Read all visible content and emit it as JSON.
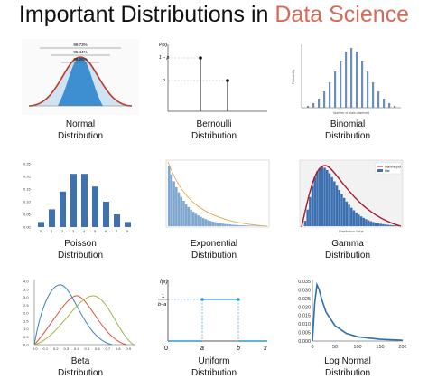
{
  "title": {
    "prefix": "Important Distributions in ",
    "highlight": "Data Science"
  },
  "colors": {
    "highlight": "#d26b58",
    "bar_blue": "#4a78ad",
    "curve_red": "#c03a2b",
    "uniform_blue": "#2e9ad0"
  },
  "distributions": [
    {
      "name_line1": "Normal",
      "name_line2": "Distribution",
      "labels": {
        "pct1": "99.73%",
        "pct2": "95.44%",
        "pct3": "68.26%"
      }
    },
    {
      "name_line1": "Bernoulli",
      "name_line2": "Distribution",
      "labels": {
        "y_top": "P(x)",
        "y_1mp": "1 − p",
        "y_p": "p"
      }
    },
    {
      "name_line1": "Binomial",
      "name_line2": "Distribution",
      "labels": {
        "xlabel": "Number of trials observed",
        "ylabel": "Probability"
      }
    },
    {
      "name_line1": "Poisson",
      "name_line2": "Distribution",
      "chart_data": {
        "type": "bar",
        "categories": [
          "0",
          "1",
          "2",
          "3",
          "4",
          "5",
          "6",
          "7",
          "8"
        ],
        "values": [
          0.02,
          0.07,
          0.14,
          0.21,
          0.21,
          0.16,
          0.1,
          0.05,
          0.02
        ],
        "y_ticks": [
          "0.25",
          "0.20",
          "0.15",
          "0.10",
          "0.05",
          "0.00"
        ]
      }
    },
    {
      "name_line1": "Exponential",
      "name_line2": "Distribution"
    },
    {
      "name_line1": "Gamma",
      "name_line2": "Distribution",
      "labels": {
        "legend1": "Gamma pdf",
        "legend2": "hist",
        "xlabel": "Distribution Value"
      }
    },
    {
      "name_line1": "Beta",
      "name_line2": "Distribution",
      "y_ticks": [
        "4.0",
        "3.5",
        "3.0",
        "2.5",
        "2.0",
        "1.5",
        "1.0",
        "0.5",
        "0.0"
      ],
      "x_ticks": [
        "0.0",
        "0.1",
        "0.2",
        "0.3",
        "0.4",
        "0.5",
        "0.6",
        "0.7",
        "0.8",
        "0.9"
      ]
    },
    {
      "name_line1": "Uniform",
      "name_line2": "Distribution",
      "labels": {
        "fx": "f(x)",
        "frac_num": "1",
        "frac_den": "b−a",
        "zero": "0",
        "a": "a",
        "b": "b",
        "x": "x"
      }
    },
    {
      "name_line1": "Log Normal",
      "name_line2": "Distribution",
      "chart_data": {
        "type": "line",
        "x": [
          0,
          5,
          10,
          15,
          20,
          30,
          50,
          75,
          100,
          150,
          200
        ],
        "y": [
          0.0,
          0.022,
          0.033,
          0.03,
          0.025,
          0.017,
          0.009,
          0.0045,
          0.0025,
          0.001,
          0.0004
        ],
        "y_ticks": [
          "0.035",
          "0.030",
          "0.025",
          "0.020",
          "0.015",
          "0.010",
          "0.005",
          "0.000"
        ],
        "x_ticks": [
          "0",
          "50",
          "100",
          "150",
          "200"
        ],
        "ylim": [
          0,
          0.035
        ],
        "xlim": [
          0,
          200
        ]
      }
    }
  ]
}
